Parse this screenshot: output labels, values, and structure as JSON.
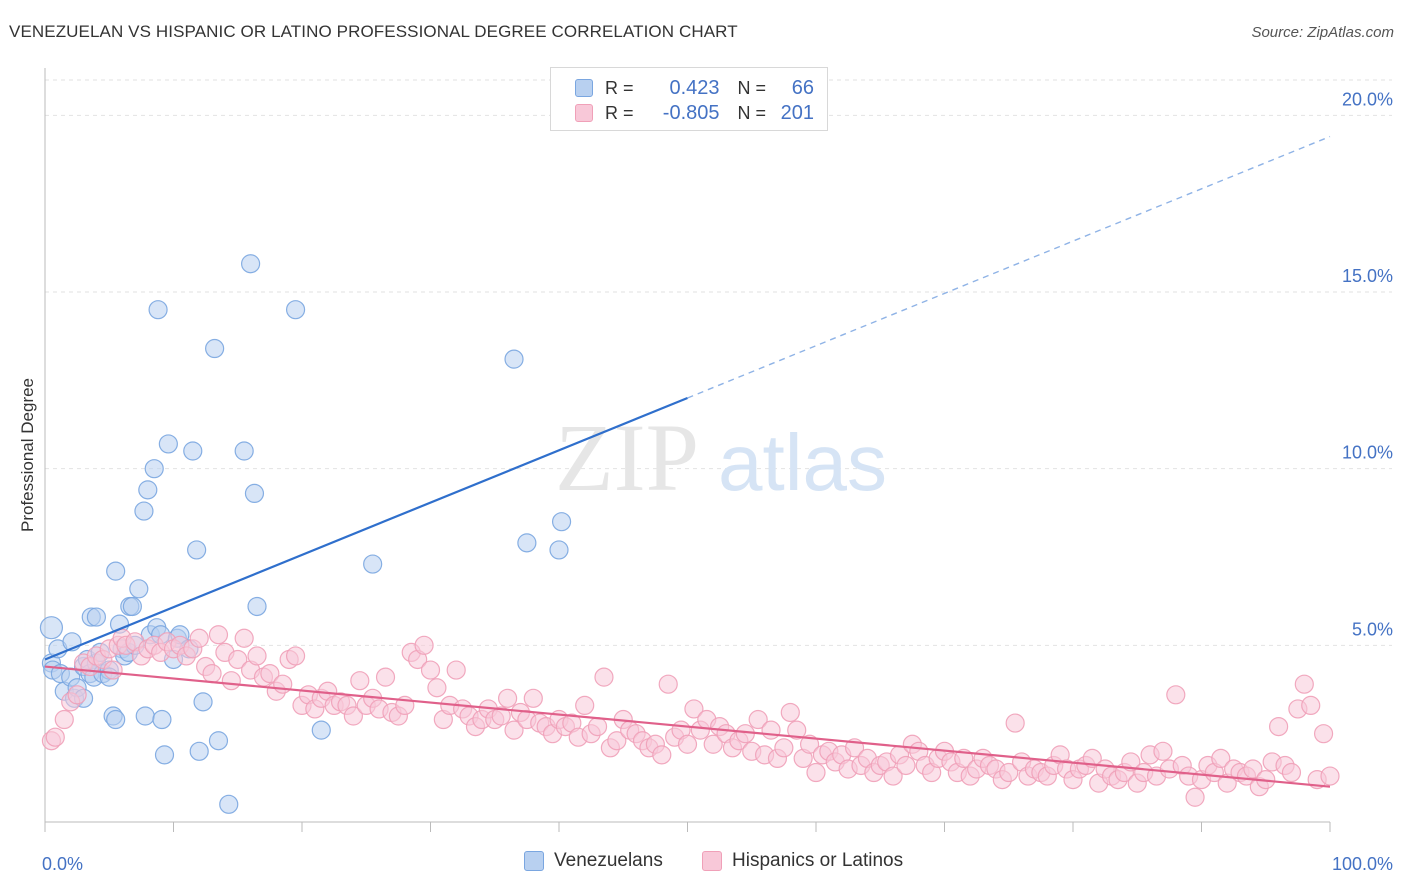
{
  "title": "VENEZUELAN VS HISPANIC OR LATINO PROFESSIONAL DEGREE CORRELATION CHART",
  "source": "Source: ZipAtlas.com",
  "watermark": {
    "part1": "ZIP",
    "part2": "atlas"
  },
  "legend": {
    "r_label": "R =",
    "n_label": "N =",
    "rows": [
      {
        "r": "0.423",
        "n": "66",
        "color": "#7aa6e0",
        "fill": "#b8d0f0"
      },
      {
        "r": "-0.805",
        "n": "201",
        "color": "#f0a0b8",
        "fill": "#f8c8d8"
      }
    ]
  },
  "bottom_legend": [
    "Venezuelans",
    "Hispanics or Latinos"
  ],
  "chart_data": {
    "type": "scatter",
    "title": "VENEZUELAN VS HISPANIC OR LATINO PROFESSIONAL DEGREE CORRELATION CHART",
    "xlabel": "",
    "ylabel": "Professional Degree",
    "xlim": [
      0,
      100
    ],
    "ylim": [
      0,
      21
    ],
    "x_tick_labels": [
      "0.0%",
      "100.0%"
    ],
    "y_ticks": [
      5,
      10,
      15,
      20
    ],
    "y_tick_labels": [
      "5.0%",
      "10.0%",
      "15.0%",
      "20.0%"
    ],
    "grid": true,
    "series": [
      {
        "name": "Venezuelans",
        "color": "#7aa6e0",
        "fill": "#b8d0f0",
        "trend": {
          "x0": 0,
          "y0": 4.6,
          "x1": 50,
          "y1": 12.0,
          "dash_to_x": 100,
          "dash_to_y": 19.4,
          "color": "#2f6fcc"
        },
        "points": [
          [
            0.5,
            5.5
          ],
          [
            0.5,
            4.5
          ],
          [
            0.6,
            4.3
          ],
          [
            1,
            4.9
          ],
          [
            1.2,
            4.2
          ],
          [
            1.5,
            3.7
          ],
          [
            2,
            4.1
          ],
          [
            2.1,
            5.1
          ],
          [
            2.3,
            3.5
          ],
          [
            2.5,
            3.8
          ],
          [
            3,
            4.4
          ],
          [
            3,
            3.5
          ],
          [
            3.3,
            4.6
          ],
          [
            3.5,
            4.2
          ],
          [
            3.6,
            5.8
          ],
          [
            3.8,
            4.1
          ],
          [
            4,
            4.5
          ],
          [
            4,
            5.8
          ],
          [
            4.3,
            4.8
          ],
          [
            4.5,
            4.2
          ],
          [
            5,
            4.3
          ],
          [
            5,
            4.1
          ],
          [
            5.3,
            3.0
          ],
          [
            5.5,
            7.1
          ],
          [
            5.5,
            2.9
          ],
          [
            5.8,
            5.6
          ],
          [
            6,
            4.9
          ],
          [
            6.2,
            4.7
          ],
          [
            6.5,
            4.8
          ],
          [
            6.6,
            6.1
          ],
          [
            6.8,
            6.1
          ],
          [
            7,
            5.0
          ],
          [
            7.3,
            6.6
          ],
          [
            7.7,
            8.8
          ],
          [
            7.8,
            3.0
          ],
          [
            8,
            9.4
          ],
          [
            8.2,
            5.3
          ],
          [
            8.5,
            10.0
          ],
          [
            8.7,
            5.5
          ],
          [
            8.8,
            14.5
          ],
          [
            9,
            5.3
          ],
          [
            9.1,
            2.9
          ],
          [
            9.3,
            1.9
          ],
          [
            9.6,
            10.7
          ],
          [
            10,
            4.6
          ],
          [
            10.3,
            5.2
          ],
          [
            10.5,
            5.3
          ],
          [
            11.2,
            4.9
          ],
          [
            11.5,
            10.5
          ],
          [
            11.8,
            7.7
          ],
          [
            12,
            2.0
          ],
          [
            12.3,
            3.4
          ],
          [
            13.2,
            13.4
          ],
          [
            13.5,
            2.3
          ],
          [
            14.3,
            0.5
          ],
          [
            15.5,
            10.5
          ],
          [
            16,
            15.8
          ],
          [
            16.3,
            9.3
          ],
          [
            16.5,
            6.1
          ],
          [
            19.5,
            14.5
          ],
          [
            21.5,
            2.6
          ],
          [
            25.5,
            7.3
          ],
          [
            36.5,
            13.1
          ],
          [
            37.5,
            7.9
          ],
          [
            40,
            7.7
          ],
          [
            40.2,
            8.5
          ]
        ]
      },
      {
        "name": "Hispanics or Latinos",
        "color": "#f0a0b8",
        "fill": "#f8c8d8",
        "trend": {
          "x0": 0,
          "y0": 4.4,
          "x1": 100,
          "y1": 1.0,
          "color": "#e0608a"
        },
        "points": [
          [
            0.5,
            2.3
          ],
          [
            0.8,
            2.4
          ],
          [
            1.5,
            2.9
          ],
          [
            2,
            3.4
          ],
          [
            2.5,
            3.6
          ],
          [
            3,
            4.5
          ],
          [
            3.5,
            4.4
          ],
          [
            4,
            4.7
          ],
          [
            4.5,
            4.6
          ],
          [
            5,
            4.9
          ],
          [
            5.3,
            4.3
          ],
          [
            5.7,
            5.0
          ],
          [
            6,
            5.2
          ],
          [
            6.3,
            5.0
          ],
          [
            7,
            5.1
          ],
          [
            7.5,
            4.7
          ],
          [
            8,
            4.9
          ],
          [
            8.5,
            5.0
          ],
          [
            9,
            4.8
          ],
          [
            9.5,
            5.1
          ],
          [
            10,
            4.9
          ],
          [
            10.5,
            5.0
          ],
          [
            11,
            4.7
          ],
          [
            11.5,
            4.9
          ],
          [
            12,
            5.2
          ],
          [
            12.5,
            4.4
          ],
          [
            13,
            4.2
          ],
          [
            13.5,
            5.3
          ],
          [
            14,
            4.8
          ],
          [
            14.5,
            4.0
          ],
          [
            15,
            4.6
          ],
          [
            15.5,
            5.2
          ],
          [
            16,
            4.3
          ],
          [
            16.5,
            4.7
          ],
          [
            17,
            4.1
          ],
          [
            17.5,
            4.2
          ],
          [
            18,
            3.7
          ],
          [
            18.5,
            3.9
          ],
          [
            19,
            4.6
          ],
          [
            19.5,
            4.7
          ],
          [
            20,
            3.3
          ],
          [
            20.5,
            3.6
          ],
          [
            21,
            3.2
          ],
          [
            21.5,
            3.5
          ],
          [
            22,
            3.7
          ],
          [
            22.5,
            3.3
          ],
          [
            23,
            3.4
          ],
          [
            23.5,
            3.3
          ],
          [
            24,
            3.0
          ],
          [
            24.5,
            4.0
          ],
          [
            25,
            3.3
          ],
          [
            25.5,
            3.5
          ],
          [
            26,
            3.2
          ],
          [
            26.5,
            4.1
          ],
          [
            27,
            3.1
          ],
          [
            27.5,
            3.0
          ],
          [
            28,
            3.3
          ],
          [
            28.5,
            4.8
          ],
          [
            29,
            4.6
          ],
          [
            29.5,
            5.0
          ],
          [
            30,
            4.3
          ],
          [
            30.5,
            3.8
          ],
          [
            31,
            2.9
          ],
          [
            31.5,
            3.3
          ],
          [
            32,
            4.3
          ],
          [
            32.5,
            3.2
          ],
          [
            33,
            3.0
          ],
          [
            33.5,
            2.7
          ],
          [
            34,
            2.9
          ],
          [
            34.5,
            3.2
          ],
          [
            35,
            2.9
          ],
          [
            35.5,
            3.0
          ],
          [
            36,
            3.5
          ],
          [
            36.5,
            2.6
          ],
          [
            37,
            3.1
          ],
          [
            37.5,
            2.9
          ],
          [
            38,
            3.5
          ],
          [
            38.5,
            2.8
          ],
          [
            39,
            2.7
          ],
          [
            39.5,
            2.5
          ],
          [
            40,
            2.9
          ],
          [
            40.5,
            2.7
          ],
          [
            41,
            2.8
          ],
          [
            41.5,
            2.4
          ],
          [
            42,
            3.3
          ],
          [
            42.5,
            2.5
          ],
          [
            43,
            2.7
          ],
          [
            43.5,
            4.1
          ],
          [
            44,
            2.1
          ],
          [
            44.5,
            2.3
          ],
          [
            45,
            2.9
          ],
          [
            45.5,
            2.6
          ],
          [
            46,
            2.5
          ],
          [
            46.5,
            2.3
          ],
          [
            47,
            2.1
          ],
          [
            47.5,
            2.2
          ],
          [
            48,
            1.9
          ],
          [
            48.5,
            3.9
          ],
          [
            49,
            2.4
          ],
          [
            49.5,
            2.6
          ],
          [
            50,
            2.2
          ],
          [
            50.5,
            3.2
          ],
          [
            51,
            2.6
          ],
          [
            51.5,
            2.9
          ],
          [
            52,
            2.2
          ],
          [
            52.5,
            2.7
          ],
          [
            53,
            2.5
          ],
          [
            53.5,
            2.1
          ],
          [
            54,
            2.3
          ],
          [
            54.5,
            2.5
          ],
          [
            55,
            2.0
          ],
          [
            55.5,
            2.9
          ],
          [
            56,
            1.9
          ],
          [
            56.5,
            2.6
          ],
          [
            57,
            1.8
          ],
          [
            57.5,
            2.1
          ],
          [
            58,
            3.1
          ],
          [
            58.5,
            2.6
          ],
          [
            59,
            1.8
          ],
          [
            59.5,
            2.2
          ],
          [
            60,
            1.4
          ],
          [
            60.5,
            1.9
          ],
          [
            61,
            2.0
          ],
          [
            61.5,
            1.7
          ],
          [
            62,
            1.9
          ],
          [
            62.5,
            1.5
          ],
          [
            63,
            2.1
          ],
          [
            63.5,
            1.6
          ],
          [
            64,
            1.8
          ],
          [
            64.5,
            1.4
          ],
          [
            65,
            1.6
          ],
          [
            65.5,
            1.7
          ],
          [
            66,
            1.3
          ],
          [
            66.5,
            1.9
          ],
          [
            67,
            1.6
          ],
          [
            67.5,
            2.2
          ],
          [
            68,
            2.0
          ],
          [
            68.5,
            1.6
          ],
          [
            69,
            1.4
          ],
          [
            69.5,
            1.8
          ],
          [
            70,
            2.0
          ],
          [
            70.5,
            1.7
          ],
          [
            71,
            1.4
          ],
          [
            71.5,
            1.8
          ],
          [
            72,
            1.3
          ],
          [
            72.5,
            1.5
          ],
          [
            73,
            1.8
          ],
          [
            73.5,
            1.6
          ],
          [
            74,
            1.5
          ],
          [
            74.5,
            1.2
          ],
          [
            75,
            1.4
          ],
          [
            75.5,
            2.8
          ],
          [
            76,
            1.7
          ],
          [
            76.5,
            1.3
          ],
          [
            77,
            1.5
          ],
          [
            77.5,
            1.4
          ],
          [
            78,
            1.3
          ],
          [
            78.5,
            1.6
          ],
          [
            79,
            1.9
          ],
          [
            79.5,
            1.5
          ],
          [
            80,
            1.2
          ],
          [
            80.5,
            1.5
          ],
          [
            81,
            1.6
          ],
          [
            81.5,
            1.8
          ],
          [
            82,
            1.1
          ],
          [
            82.5,
            1.5
          ],
          [
            83,
            1.3
          ],
          [
            83.5,
            1.2
          ],
          [
            84,
            1.4
          ],
          [
            84.5,
            1.7
          ],
          [
            85,
            1.1
          ],
          [
            85.5,
            1.4
          ],
          [
            86,
            1.9
          ],
          [
            86.5,
            1.3
          ],
          [
            87,
            2.0
          ],
          [
            87.5,
            1.5
          ],
          [
            88,
            3.6
          ],
          [
            88.5,
            1.6
          ],
          [
            89,
            1.3
          ],
          [
            89.5,
            0.7
          ],
          [
            90,
            1.2
          ],
          [
            90.5,
            1.6
          ],
          [
            91,
            1.4
          ],
          [
            91.5,
            1.8
          ],
          [
            92,
            1.1
          ],
          [
            92.5,
            1.5
          ],
          [
            93,
            1.4
          ],
          [
            93.5,
            1.3
          ],
          [
            94,
            1.5
          ],
          [
            94.5,
            1.0
          ],
          [
            95,
            1.2
          ],
          [
            95.5,
            1.7
          ],
          [
            96,
            2.7
          ],
          [
            96.5,
            1.6
          ],
          [
            97,
            1.4
          ],
          [
            97.5,
            3.2
          ],
          [
            98,
            3.9
          ],
          [
            98.5,
            3.3
          ],
          [
            99,
            1.2
          ],
          [
            99.5,
            2.5
          ],
          [
            100,
            1.3
          ]
        ]
      }
    ]
  }
}
